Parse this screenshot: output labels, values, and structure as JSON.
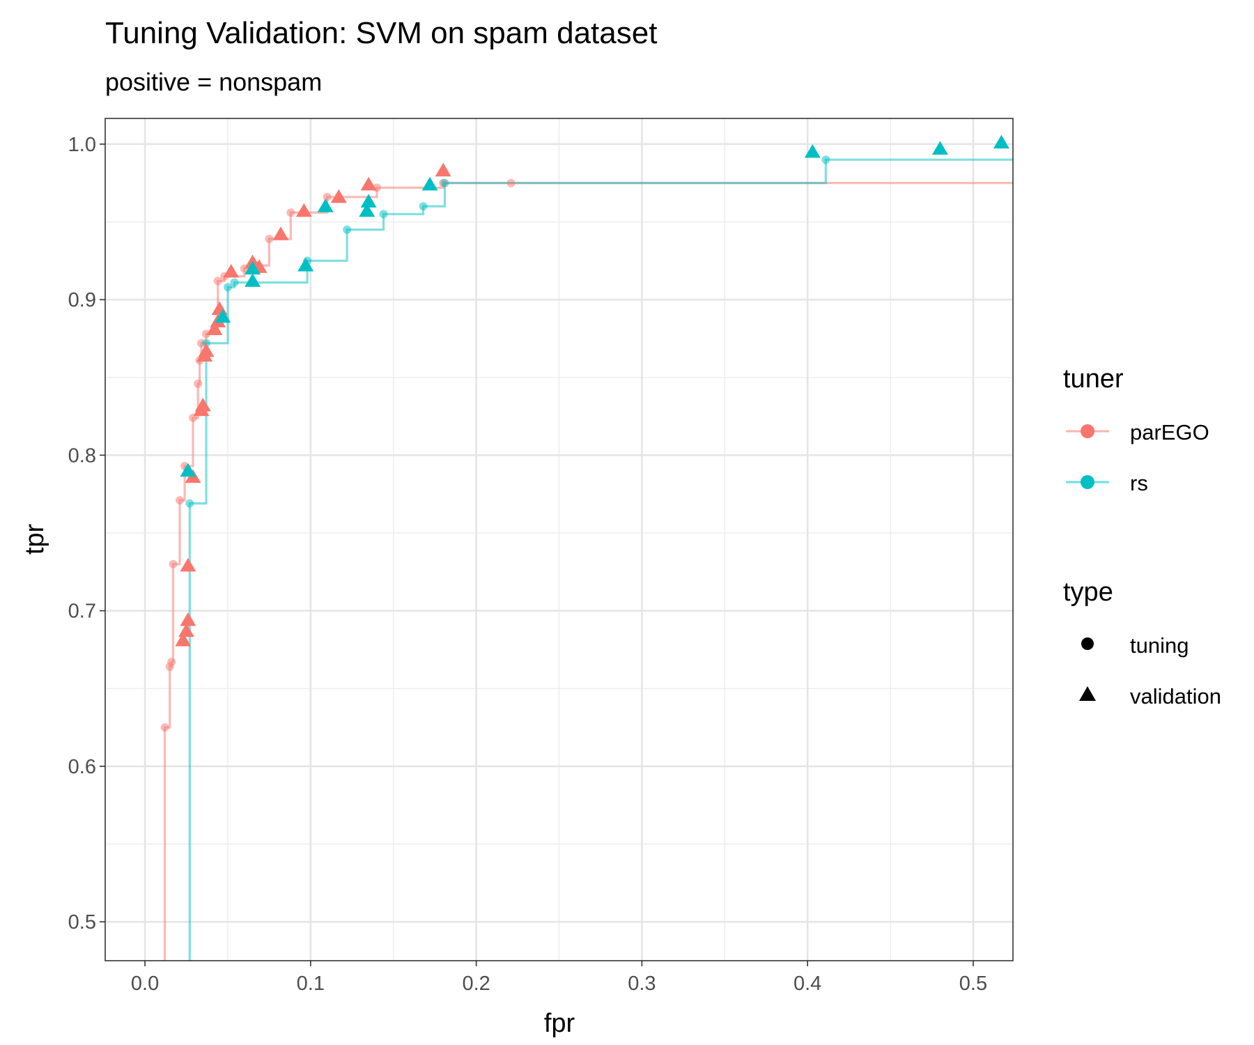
{
  "chart_data": {
    "type": "line",
    "title": "Tuning Validation: SVM on spam dataset",
    "subtitle": "positive = nonspam",
    "xlabel": "fpr",
    "ylabel": "tpr",
    "xlim": [
      -0.024,
      0.524
    ],
    "ylim": [
      0.475,
      1.0165
    ],
    "x_ticks": [
      0.0,
      0.1,
      0.2,
      0.3,
      0.4,
      0.5
    ],
    "x_tick_labels": [
      "0.0",
      "0.1",
      "0.2",
      "0.3",
      "0.4",
      "0.5"
    ],
    "y_ticks": [
      0.5,
      0.6,
      0.7,
      0.8,
      0.9,
      1.0
    ],
    "y_tick_labels": [
      "0.5",
      "0.6",
      "0.7",
      "0.8",
      "0.9",
      "1.0"
    ],
    "grid": true,
    "legend": {
      "position": "right",
      "tuner_title": "tuner",
      "type_title": "type",
      "tuner_items": [
        {
          "label": "parEGO",
          "color": "#F8766D"
        },
        {
          "label": "rs",
          "color": "#00BFC4"
        }
      ],
      "type_items": [
        {
          "label": "tuning",
          "shape": "circle"
        },
        {
          "label": "validation",
          "shape": "triangle"
        }
      ]
    },
    "series": [
      {
        "name": "parEGO",
        "color": "#F8766D",
        "step_path": [
          [
            0.012,
            0.475
          ],
          [
            0.012,
            0.625
          ],
          [
            0.015,
            0.625
          ],
          [
            0.015,
            0.664
          ],
          [
            0.016,
            0.664
          ],
          [
            0.016,
            0.667
          ],
          [
            0.017,
            0.667
          ],
          [
            0.017,
            0.73
          ],
          [
            0.021,
            0.73
          ],
          [
            0.021,
            0.771
          ],
          [
            0.024,
            0.771
          ],
          [
            0.024,
            0.793
          ],
          [
            0.029,
            0.793
          ],
          [
            0.029,
            0.824
          ],
          [
            0.032,
            0.824
          ],
          [
            0.032,
            0.846
          ],
          [
            0.033,
            0.846
          ],
          [
            0.033,
            0.861
          ],
          [
            0.034,
            0.861
          ],
          [
            0.034,
            0.872
          ],
          [
            0.037,
            0.872
          ],
          [
            0.037,
            0.878
          ],
          [
            0.044,
            0.878
          ],
          [
            0.044,
            0.912
          ],
          [
            0.048,
            0.912
          ],
          [
            0.048,
            0.915
          ],
          [
            0.06,
            0.915
          ],
          [
            0.06,
            0.92
          ],
          [
            0.068,
            0.92
          ],
          [
            0.068,
            0.922
          ],
          [
            0.075,
            0.922
          ],
          [
            0.075,
            0.939
          ],
          [
            0.088,
            0.939
          ],
          [
            0.088,
            0.956
          ],
          [
            0.11,
            0.956
          ],
          [
            0.11,
            0.966
          ],
          [
            0.14,
            0.966
          ],
          [
            0.14,
            0.972
          ],
          [
            0.18,
            0.972
          ],
          [
            0.18,
            0.975
          ],
          [
            0.221,
            0.975
          ],
          [
            0.524,
            0.975
          ]
        ],
        "tuning": {
          "fpr": [
            0.012,
            0.015,
            0.016,
            0.017,
            0.021,
            0.024,
            0.029,
            0.032,
            0.033,
            0.034,
            0.037,
            0.044,
            0.048,
            0.06,
            0.068,
            0.075,
            0.088,
            0.11,
            0.14,
            0.18,
            0.221
          ],
          "tpr": [
            0.625,
            0.664,
            0.667,
            0.73,
            0.771,
            0.793,
            0.824,
            0.846,
            0.861,
            0.872,
            0.878,
            0.912,
            0.915,
            0.92,
            0.922,
            0.939,
            0.956,
            0.966,
            0.972,
            0.975,
            0.975
          ]
        },
        "validation": {
          "fpr": [
            0.023,
            0.025,
            0.026,
            0.026,
            0.029,
            0.034,
            0.035,
            0.036,
            0.037,
            0.042,
            0.044,
            0.045,
            0.052,
            0.065,
            0.069,
            0.082,
            0.096,
            0.117,
            0.135,
            0.18
          ],
          "tpr": [
            0.681,
            0.687,
            0.694,
            0.729,
            0.786,
            0.829,
            0.832,
            0.864,
            0.867,
            0.881,
            0.886,
            0.894,
            0.918,
            0.924,
            0.921,
            0.942,
            0.957,
            0.966,
            0.974,
            0.983
          ]
        }
      },
      {
        "name": "rs",
        "color": "#00BFC4",
        "step_path": [
          [
            0.027,
            0.475
          ],
          [
            0.027,
            0.769
          ],
          [
            0.037,
            0.769
          ],
          [
            0.037,
            0.872
          ],
          [
            0.05,
            0.872
          ],
          [
            0.05,
            0.908
          ],
          [
            0.054,
            0.908
          ],
          [
            0.054,
            0.911
          ],
          [
            0.098,
            0.911
          ],
          [
            0.098,
            0.925
          ],
          [
            0.122,
            0.925
          ],
          [
            0.122,
            0.945
          ],
          [
            0.144,
            0.945
          ],
          [
            0.144,
            0.955
          ],
          [
            0.168,
            0.955
          ],
          [
            0.168,
            0.96
          ],
          [
            0.181,
            0.96
          ],
          [
            0.181,
            0.975
          ],
          [
            0.411,
            0.975
          ],
          [
            0.411,
            0.99
          ],
          [
            0.524,
            0.99
          ]
        ],
        "tuning": {
          "fpr": [
            0.027,
            0.037,
            0.05,
            0.054,
            0.098,
            0.122,
            0.144,
            0.168,
            0.181,
            0.411
          ],
          "tpr": [
            0.769,
            0.872,
            0.908,
            0.911,
            0.925,
            0.945,
            0.955,
            0.96,
            0.975,
            0.99
          ]
        },
        "validation": {
          "fpr": [
            0.026,
            0.047,
            0.065,
            0.065,
            0.097,
            0.109,
            0.134,
            0.135,
            0.172,
            0.403,
            0.48,
            0.517
          ],
          "tpr": [
            0.79,
            0.889,
            0.912,
            0.92,
            0.922,
            0.96,
            0.957,
            0.963,
            0.974,
            0.995,
            0.997,
            1.001
          ]
        }
      }
    ]
  }
}
